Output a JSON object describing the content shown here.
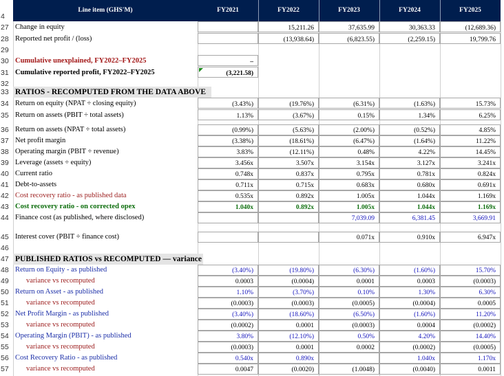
{
  "header": {
    "row_number": "4",
    "label": "Line item (GHS'M)",
    "years": [
      "FY2021",
      "FY2022",
      "FY2023",
      "FY2024",
      "FY2025"
    ]
  },
  "rows": {
    "r27": {
      "num": "27",
      "label": "Change in equity",
      "vals": [
        "",
        "15,211.26",
        "37,635.99",
        "30,363.33",
        "(12,689.36)"
      ]
    },
    "r28": {
      "num": "28",
      "label": "Reported net profit / (loss)",
      "vals": [
        "",
        "(13,938.64)",
        "(6,823.55)",
        "(2,259.15)",
        "19,799.76"
      ]
    },
    "r29": {
      "num": "29"
    },
    "r30": {
      "num": "30",
      "label": "Cumulative unexplained, FY2022–FY2025",
      "vals": [
        "–"
      ]
    },
    "r31": {
      "num": "31",
      "label": "Cumulative reported profit, FY2022–FY2025",
      "vals": [
        "(3,221.58)"
      ]
    },
    "r32": {
      "num": "32"
    },
    "r33": {
      "num": "33",
      "label": "RATIOS - RECOMPUTED FROM THE DATA ABOVE"
    },
    "r34": {
      "num": "34",
      "label": "Return on equity (NPAT ÷ closing equity)",
      "vals": [
        "(3.43%)",
        "(19.76%)",
        "(6.31%)",
        "(1.63%)",
        "15.73%"
      ]
    },
    "r35": {
      "num": "35",
      "label": "Return on assets (PBIT ÷ total assets)",
      "vals": [
        "1.13%",
        "(3.67%)",
        "0.15%",
        "1.34%",
        "6.25%"
      ]
    },
    "r36": {
      "num": "36",
      "label": "Return on assets (NPAT ÷ total assets)",
      "vals": [
        "(0.99%)",
        "(5.63%)",
        "(2.00%)",
        "(0.52%)",
        "4.85%"
      ]
    },
    "r37": {
      "num": "37",
      "label": "Net profit margin",
      "vals": [
        "(3.38%)",
        "(18.61%)",
        "(6.47%)",
        "(1.64%)",
        "11.22%"
      ]
    },
    "r38": {
      "num": "38",
      "label": "Operating margin (PBIT ÷ revenue)",
      "vals": [
        "3.83%",
        "(12.11%)",
        "0.48%",
        "4.22%",
        "14.45%"
      ]
    },
    "r39": {
      "num": "39",
      "label": "Leverage (assets ÷ equity)",
      "vals": [
        "3.456x",
        "3.507x",
        "3.154x",
        "3.127x",
        "3.241x"
      ]
    },
    "r40": {
      "num": "40",
      "label": "Current ratio",
      "vals": [
        "0.748x",
        "0.837x",
        "0.795x",
        "0.781x",
        "0.824x"
      ]
    },
    "r41": {
      "num": "41",
      "label": "Debt-to-assets",
      "vals": [
        "0.711x",
        "0.715x",
        "0.683x",
        "0.680x",
        "0.691x"
      ]
    },
    "r42": {
      "num": "42",
      "label": "Cost recovery ratio - as published data",
      "vals": [
        "0.535x",
        "0.892x",
        "1.005x",
        "1.044x",
        "1.169x"
      ]
    },
    "r43": {
      "num": "43",
      "label": "Cost recovery ratio - on corrected opex",
      "vals": [
        "1.040x",
        "0.892x",
        "1.005x",
        "1.044x",
        "1.169x"
      ]
    },
    "r44": {
      "num": "44",
      "label": "Finance cost (as published, where disclosed)",
      "vals": [
        "",
        "",
        "7,039.09",
        "6,381.45",
        "3,669.91"
      ]
    },
    "r45": {
      "num": "45",
      "label": "Interest cover (PBIT ÷ finance cost)",
      "vals": [
        "",
        "",
        "0.071x",
        "0.910x",
        "6.947x"
      ]
    },
    "r46": {
      "num": "46"
    },
    "r47": {
      "num": "47",
      "label": "PUBLISHED RATIOS vs RECOMPUTED — variance"
    },
    "r48": {
      "num": "48",
      "label": "Return on Equity - as published",
      "vals": [
        "(3.40%)",
        "(19.80%)",
        "(6.30%)",
        "(1.60%)",
        "15.70%"
      ]
    },
    "r49": {
      "num": "49",
      "label": "variance vs recomputed",
      "vals": [
        "0.0003",
        "(0.0004)",
        "0.0001",
        "0.0003",
        "(0.0003)"
      ]
    },
    "r50": {
      "num": "50",
      "label": "Return on Asset - as published",
      "vals": [
        "1.10%",
        "(3.70%)",
        "0.10%",
        "1.30%",
        "6.30%"
      ]
    },
    "r51": {
      "num": "51",
      "label": "variance vs recomputed",
      "vals": [
        "(0.0003)",
        "(0.0003)",
        "(0.0005)",
        "(0.0004)",
        "0.0005"
      ]
    },
    "r52": {
      "num": "52",
      "label": "Net Profit Margin - as published",
      "vals": [
        "(3.40%)",
        "(18.60%)",
        "(6.50%)",
        "(1.60%)",
        "11.20%"
      ]
    },
    "r53": {
      "num": "53",
      "label": "variance vs recomputed",
      "vals": [
        "(0.0002)",
        "0.0001",
        "(0.0003)",
        "0.0004",
        "(0.0002)"
      ]
    },
    "r54": {
      "num": "54",
      "label": "Operating Margin (PBIT) - as published",
      "vals": [
        "3.80%",
        "(12.10%)",
        "0.50%",
        "4.20%",
        "14.40%"
      ]
    },
    "r55": {
      "num": "55",
      "label": "variance vs recomputed",
      "vals": [
        "(0.0003)",
        "0.0001",
        "0.0002",
        "(0.0002)",
        "(0.0005)"
      ]
    },
    "r56": {
      "num": "56",
      "label": "Cost Recovery Ratio - as published",
      "vals": [
        "0.540x",
        "0.890x",
        "",
        "1.040x",
        "1.170x"
      ]
    },
    "r57": {
      "num": "57",
      "label": "variance vs recomputed",
      "vals": [
        "0.0047",
        "(0.0020)",
        "(1.0048)",
        "(0.0040)",
        "0.0011"
      ]
    }
  },
  "colors": {
    "header_bg": "#001e4e",
    "red": "#a31818",
    "blue": "#1111bb",
    "green": "#0b6d0b",
    "section_bg": "#e4e4e4"
  }
}
